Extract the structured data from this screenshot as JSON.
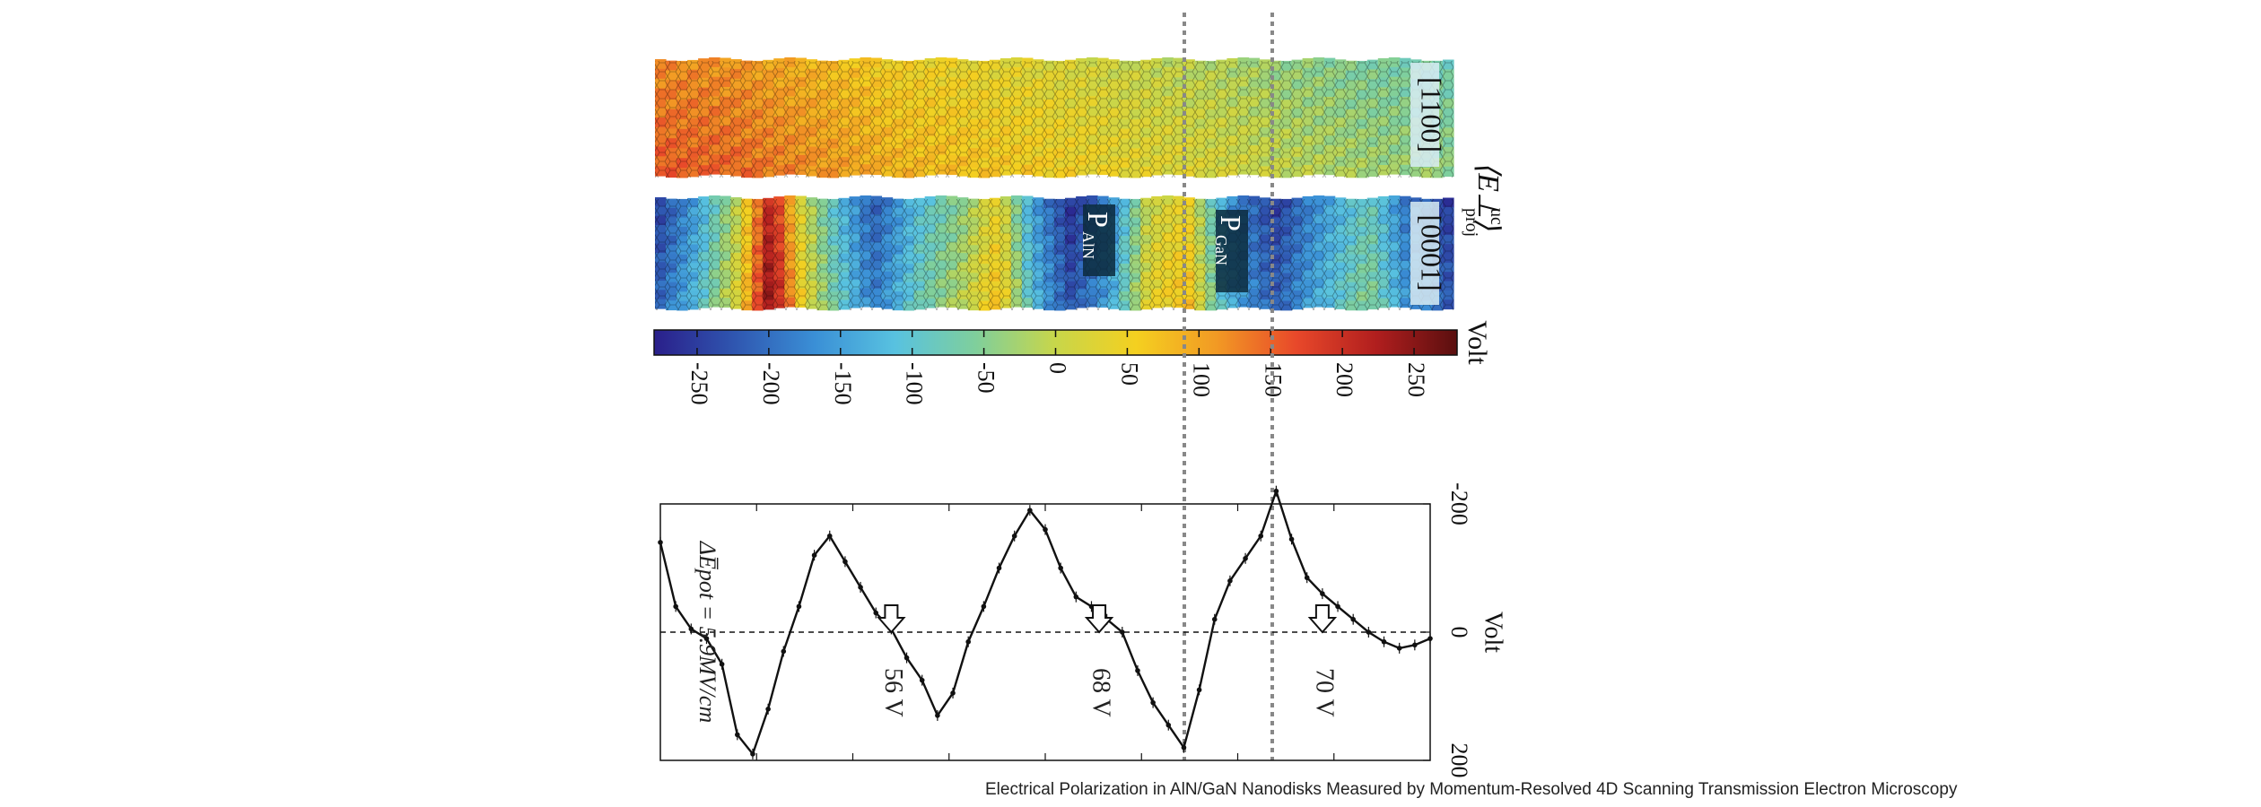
{
  "caption": "Electrical Polarization in AlN/GaN Nanodisks Measured by Momentum-Resolved 4D Scanning Transmission Electron Microscopy",
  "maps": {
    "top_label": "[1100]",
    "bottom_label": "[0001]",
    "side_label": "⟨E⊥⟩",
    "side_label_sup": "uc",
    "side_label_sub": "proj",
    "p_aln": "P",
    "p_aln_sub": "AlN",
    "p_gan": "P",
    "p_gan_sub": "GaN"
  },
  "colorbar": {
    "unit": "Volt",
    "ticks": [
      "-250",
      "-200",
      "-150",
      "-100",
      "-50",
      "0",
      "50",
      "100",
      "150",
      "200",
      "250"
    ],
    "tick_values": [
      -250,
      -200,
      -150,
      -100,
      -50,
      0,
      50,
      100,
      150,
      200,
      250
    ],
    "range": [
      -280,
      280
    ],
    "colors": [
      "#2a1f8a",
      "#2f56b0",
      "#3a8fd6",
      "#58c2e0",
      "#7fcf9c",
      "#c8d64a",
      "#f4d020",
      "#f29a24",
      "#e8482a",
      "#b01e1e",
      "#5a0f0f"
    ]
  },
  "top_map_profile": [
    {
      "x": 0.0,
      "v": 140
    },
    {
      "x": 0.1,
      "v": 130
    },
    {
      "x": 0.2,
      "v": 100
    },
    {
      "x": 0.3,
      "v": 70
    },
    {
      "x": 0.4,
      "v": 55
    },
    {
      "x": 0.5,
      "v": 40
    },
    {
      "x": 0.6,
      "v": 20
    },
    {
      "x": 0.7,
      "v": 5
    },
    {
      "x": 0.8,
      "v": -20
    },
    {
      "x": 0.9,
      "v": -40
    },
    {
      "x": 1.0,
      "v": -55
    }
  ],
  "bottom_map_profile": [
    {
      "x": 0.0,
      "v": -220
    },
    {
      "x": 0.05,
      "v": -120
    },
    {
      "x": 0.1,
      "v": 20
    },
    {
      "x": 0.14,
      "v": 240
    },
    {
      "x": 0.18,
      "v": 30
    },
    {
      "x": 0.22,
      "v": -80
    },
    {
      "x": 0.27,
      "v": -200
    },
    {
      "x": 0.33,
      "v": -90
    },
    {
      "x": 0.38,
      "v": -30
    },
    {
      "x": 0.43,
      "v": 60
    },
    {
      "x": 0.47,
      "v": -120
    },
    {
      "x": 0.52,
      "v": -240
    },
    {
      "x": 0.57,
      "v": -160
    },
    {
      "x": 0.62,
      "v": 20
    },
    {
      "x": 0.67,
      "v": 60
    },
    {
      "x": 0.72,
      "v": -140
    },
    {
      "x": 0.78,
      "v": -230
    },
    {
      "x": 0.84,
      "v": -140
    },
    {
      "x": 0.9,
      "v": -60
    },
    {
      "x": 0.95,
      "v": -180
    },
    {
      "x": 1.0,
      "v": -230
    }
  ],
  "chart_data": {
    "type": "line",
    "title": "",
    "ylabel": "Volt",
    "legend_formula": "ΔE̅pot = 5.9MV/cm",
    "ylim": [
      200,
      -200
    ],
    "y_ticks": [
      "-200",
      "0",
      "200"
    ],
    "y_tick_values": [
      -200,
      0,
      200
    ],
    "x_positions": [
      0.0,
      0.02,
      0.04,
      0.06,
      0.08,
      0.1,
      0.12,
      0.14,
      0.16,
      0.18,
      0.2,
      0.22,
      0.24,
      0.26,
      0.28,
      0.3,
      0.32,
      0.34,
      0.36,
      0.38,
      0.4,
      0.42,
      0.44,
      0.46,
      0.48,
      0.5,
      0.52,
      0.54,
      0.56,
      0.58,
      0.6,
      0.62,
      0.64,
      0.66,
      0.68,
      0.7,
      0.72,
      0.74,
      0.76,
      0.78,
      0.8,
      0.82,
      0.84,
      0.86,
      0.88,
      0.9,
      0.92,
      0.94,
      0.96,
      0.98,
      1.0
    ],
    "values": [
      -140,
      -40,
      -5,
      10,
      50,
      160,
      190,
      120,
      30,
      -40,
      -120,
      -150,
      -110,
      -70,
      -30,
      -5,
      40,
      75,
      130,
      95,
      15,
      -40,
      -100,
      -150,
      -190,
      -160,
      -100,
      -55,
      -40,
      -20,
      0,
      60,
      110,
      145,
      180,
      90,
      -20,
      -80,
      -115,
      -150,
      -220,
      -145,
      -85,
      -60,
      -40,
      -20,
      0,
      15,
      25,
      20,
      10
    ],
    "annotations": [
      {
        "x": 0.3,
        "value": 56,
        "label": "56 V"
      },
      {
        "x": 0.57,
        "value": 68,
        "label": "68 V"
      },
      {
        "x": 0.86,
        "value": 70,
        "label": "70 V"
      }
    ]
  }
}
